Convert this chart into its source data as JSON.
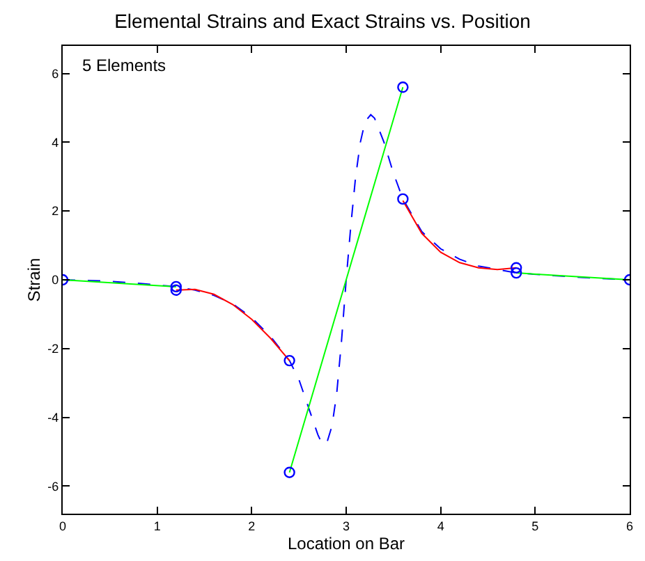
{
  "chart_data": {
    "type": "line",
    "title": "Elemental Strains and Exact Strains vs. Position",
    "xlabel": "Location on Bar",
    "ylabel": "Strain",
    "annotations": [
      "5 Elements"
    ],
    "xlim": [
      0,
      6
    ],
    "xticks": [
      0,
      1,
      2,
      3,
      4,
      5,
      6
    ],
    "ylim": [
      -6.8,
      6.8
    ],
    "yticks": [
      -6,
      -4,
      -2,
      0,
      2,
      4,
      6
    ],
    "series": [
      {
        "color": "#0000ff",
        "line_style": "dashed",
        "marker": "none",
        "x": [
          0,
          0.4,
          0.8,
          1.2,
          1.4,
          1.6,
          1.8,
          2.0,
          2.2,
          2.4,
          2.5,
          2.6,
          2.7,
          2.75,
          2.8,
          2.85,
          2.9,
          2.95,
          3.0,
          3.05,
          3.1,
          3.15,
          3.2,
          3.26,
          3.3,
          3.4,
          3.5,
          3.6,
          3.8,
          4.0,
          4.2,
          4.4,
          4.6,
          4.8,
          5.2,
          5.6,
          6.0
        ],
        "values": [
          0,
          -0.03,
          -0.1,
          -0.2,
          -0.3,
          -0.45,
          -0.7,
          -1.1,
          -1.65,
          -2.35,
          -2.9,
          -3.7,
          -4.5,
          -4.8,
          -4.7,
          -4.25,
          -3.3,
          -1.8,
          0,
          1.6,
          3.0,
          4.0,
          4.6,
          4.8,
          4.7,
          4.0,
          3.1,
          2.35,
          1.4,
          0.9,
          0.6,
          0.4,
          0.3,
          0.2,
          0.12,
          0.05,
          0
        ]
      },
      {
        "color": "#ff0000",
        "line_style": "solid",
        "marker": "none",
        "x": [
          1.2,
          1.4,
          1.6,
          1.8,
          2.0,
          2.2,
          2.4
        ],
        "values": [
          -0.3,
          -0.28,
          -0.42,
          -0.72,
          -1.15,
          -1.7,
          -2.35
        ]
      },
      {
        "color": "#ff0000",
        "line_style": "solid",
        "marker": "none",
        "x": [
          3.6,
          3.8,
          4.0,
          4.2,
          4.4,
          4.6,
          4.8
        ],
        "values": [
          2.3,
          1.35,
          0.8,
          0.5,
          0.35,
          0.3,
          0.35
        ]
      },
      {
        "color": "#00ff00",
        "line_style": "solid",
        "marker": "none",
        "x": [
          0,
          1.2
        ],
        "values": [
          0,
          -0.2
        ]
      },
      {
        "color": "#00ff00",
        "line_style": "solid",
        "marker": "none",
        "x": [
          2.4,
          3.6
        ],
        "values": [
          -5.6,
          5.6
        ]
      },
      {
        "color": "#00ff00",
        "line_style": "solid",
        "marker": "none",
        "x": [
          4.8,
          6
        ],
        "values": [
          0.2,
          0
        ]
      },
      {
        "type": "scatter",
        "color": "#0000ff",
        "marker": "circle",
        "x": [
          0,
          1.2,
          1.2,
          2.4,
          2.4,
          3.6,
          3.6,
          4.8,
          4.8,
          6
        ],
        "values": [
          0,
          -0.2,
          -0.3,
          -2.35,
          -5.6,
          5.6,
          2.35,
          0.35,
          0.2,
          0
        ]
      }
    ]
  }
}
